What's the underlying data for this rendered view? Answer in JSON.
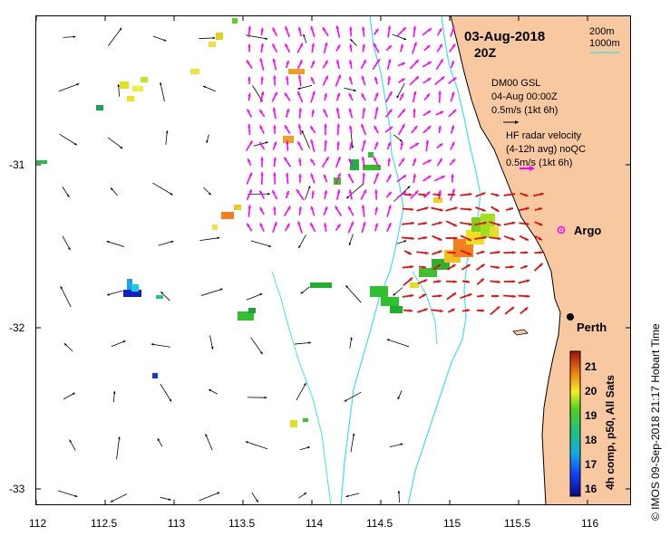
{
  "map": {
    "title_date": "03-Aug-2018",
    "title_hour": "20Z",
    "x_ticks": [
      "112",
      "112.5",
      "113",
      "113.5",
      "114",
      "114.5",
      "115",
      "115.5",
      "116"
    ],
    "y_ticks": [
      "-31",
      "-32",
      "-33"
    ],
    "depth_legend": {
      "shallow": "200m",
      "deep": "1000m"
    },
    "glider_legend": {
      "line1": "DM00 GSL",
      "line2": "04-Aug 00:00Z",
      "line3": "0.5m/s (1kt 6h)"
    },
    "radar_legend": {
      "line1": "HF radar velocity",
      "line2": "(4-12h avg) noQC",
      "line3": "0.5m/s (1kt 6h)"
    },
    "places": {
      "argo": "Argo",
      "perth": "Perth"
    },
    "colorbar": {
      "label": "4h comp, p50, All Sats",
      "ticks": [
        "21",
        "20",
        "19",
        "18",
        "17",
        "16"
      ]
    },
    "copyright": "© IMOS 09-Sep-2018 21:17 Hobart Time",
    "colors": {
      "land": "#f8c8a0",
      "isobath": "#40e0e8",
      "glider": "#ff00ff",
      "radar": "#e01010",
      "wind": "#000000"
    }
  }
}
